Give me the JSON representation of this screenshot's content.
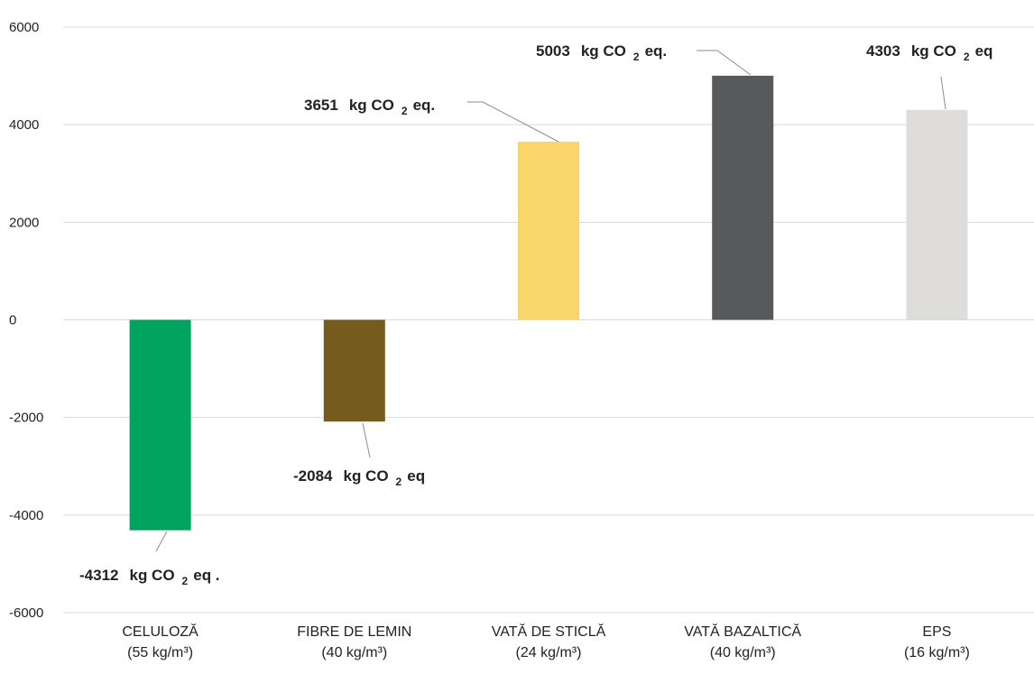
{
  "chart_data": {
    "type": "bar",
    "categories": [
      [
        "CELULOZĂ",
        "(55 kg/m³)"
      ],
      [
        "FIBRE DE LEMIN",
        "(40 kg/m³)"
      ],
      [
        "VATĂ DE STICLĂ",
        "(24 kg/m³)"
      ],
      [
        "VATĂ BAZALTICĂ",
        "(40 kg/m³)"
      ],
      [
        "EPS",
        "(16 kg/m³)"
      ]
    ],
    "values": [
      -4312,
      -2084,
      3651,
      5003,
      4303
    ],
    "colors": [
      "#00A45E",
      "#755C1E",
      "#FAD56A",
      "#58595B",
      "#DEDDDC"
    ],
    "data_labels": [
      {
        "num": "-4312",
        "unit": "kg CO",
        "sub": "2",
        "suffix": "eq ."
      },
      {
        "num": "-2084",
        "unit": "kg CO",
        "sub": "2",
        "suffix": "eq"
      },
      {
        "num": "3651",
        "unit": "kg CO",
        "sub": "2",
        "suffix": "eq."
      },
      {
        "num": "5003",
        "unit": "kg CO",
        "sub": "2",
        "suffix": "eq."
      },
      {
        "num": "4303",
        "unit": "kg CO",
        "sub": "2",
        "suffix": "eq"
      }
    ],
    "y_ticks": [
      "6000",
      "4000",
      "2000",
      "0",
      "-2000",
      "-4000",
      "-6000"
    ],
    "ylim": [
      -6000,
      6000
    ],
    "grid": true,
    "legend": "none",
    "title": "",
    "xlabel": "",
    "ylabel": ""
  }
}
